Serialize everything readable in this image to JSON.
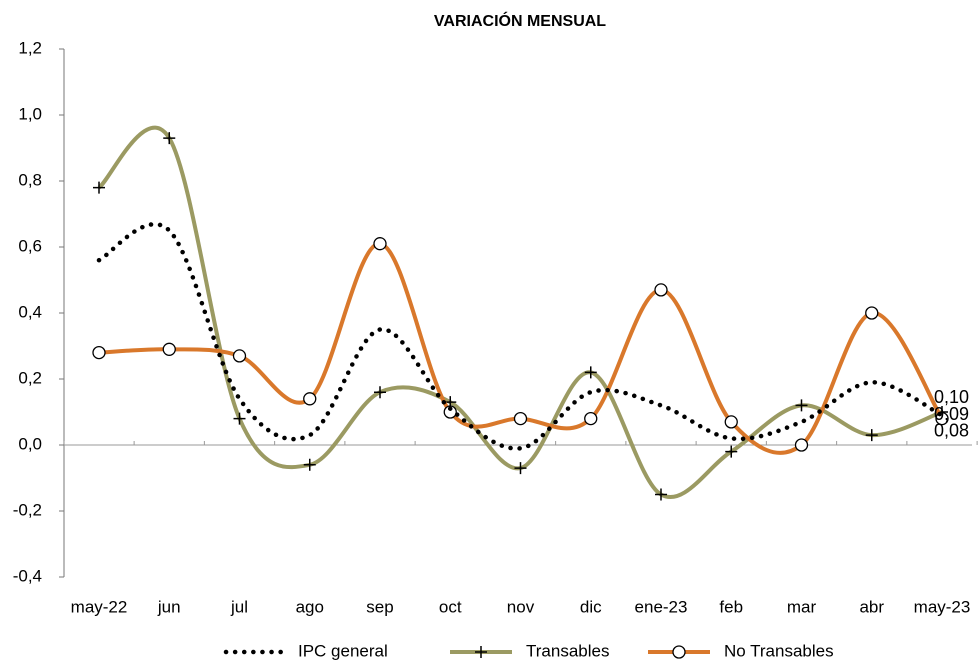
{
  "chart_data": {
    "type": "line",
    "title": "VARIACIÓN MENSUAL",
    "categories": [
      "may-22",
      "jun",
      "jul",
      "ago",
      "sep",
      "oct",
      "nov",
      "dic",
      "ene-23",
      "feb",
      "mar",
      "abr",
      "may-23"
    ],
    "series": [
      {
        "name": "IPC general",
        "color": "#000000",
        "marker": "dot",
        "values": [
          0.56,
          0.65,
          0.14,
          0.03,
          0.35,
          0.11,
          -0.01,
          0.16,
          0.12,
          0.02,
          0.07,
          0.19,
          0.09
        ],
        "value_labels": [
          null,
          null,
          null,
          null,
          null,
          null,
          null,
          null,
          null,
          null,
          null,
          null,
          "0,09"
        ]
      },
      {
        "name": "Transables",
        "color": "#9b9a62",
        "label_color": "#7f8a12",
        "marker": "plus",
        "values": [
          0.78,
          0.93,
          0.08,
          -0.06,
          0.16,
          0.13,
          -0.07,
          0.22,
          -0.15,
          -0.02,
          0.12,
          0.03,
          0.1
        ],
        "value_labels": [
          null,
          null,
          null,
          null,
          null,
          null,
          null,
          null,
          null,
          null,
          null,
          null,
          "0,10"
        ]
      },
      {
        "name": "No Transables",
        "color": "#d9782b",
        "label_color": "#e0701a",
        "marker": "circle",
        "values": [
          0.28,
          0.29,
          0.27,
          0.14,
          0.61,
          0.1,
          0.08,
          0.08,
          0.47,
          0.07,
          0.0,
          0.4,
          0.08
        ],
        "value_labels": [
          null,
          null,
          null,
          null,
          null,
          null,
          null,
          null,
          null,
          null,
          null,
          null,
          "0,08"
        ]
      }
    ],
    "ylim": [
      -0.4,
      1.2
    ],
    "yticks": [
      {
        "value": -0.4,
        "label": "-0,4"
      },
      {
        "value": -0.2,
        "label": "-0,2"
      },
      {
        "value": 0,
        "label": "0,0"
      },
      {
        "value": 0.2,
        "label": "0,2"
      },
      {
        "value": 0.4,
        "label": "0,4"
      },
      {
        "value": 0.6,
        "label": "0,6"
      },
      {
        "value": 0.8,
        "label": "0,8"
      },
      {
        "value": 1.0,
        "label": "1,0"
      },
      {
        "value": 1.2,
        "label": "1,2"
      }
    ],
    "smooth": true
  }
}
